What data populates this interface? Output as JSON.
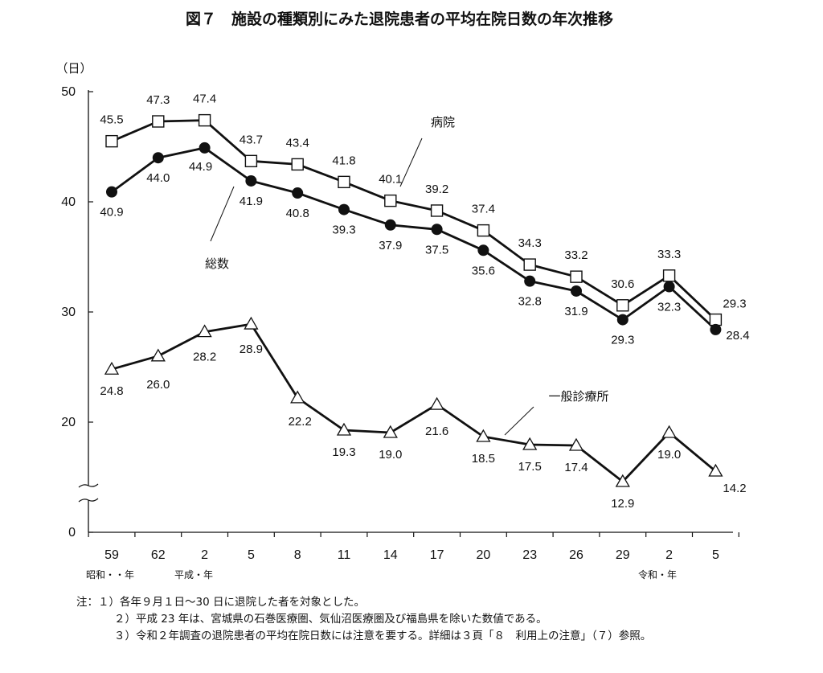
{
  "title": "図７　施設の種類別にみた退院患者の平均在院日数の年次推移",
  "chart_data": {
    "type": "line",
    "y_unit_label": "（日）",
    "ylim": [
      0,
      50
    ],
    "yticks": [
      0,
      20,
      30,
      40,
      50
    ],
    "y_axis_break": true,
    "grid": false,
    "categories": [
      "59",
      "62",
      "2",
      "5",
      "8",
      "11",
      "14",
      "17",
      "20",
      "23",
      "26",
      "29",
      "2",
      "5"
    ],
    "era_labels": [
      "昭和・・年",
      "平成・年",
      "令和・年"
    ],
    "series": [
      {
        "name": "病院",
        "marker": "open-square",
        "values": [
          45.5,
          47.3,
          47.4,
          43.7,
          43.4,
          41.8,
          40.1,
          39.2,
          37.4,
          34.3,
          33.2,
          30.6,
          33.3,
          29.3
        ]
      },
      {
        "name": "総数",
        "marker": "filled-circle",
        "values": [
          40.9,
          44.0,
          44.9,
          41.9,
          40.8,
          39.3,
          37.9,
          37.5,
          35.6,
          32.8,
          31.9,
          29.3,
          32.3,
          28.4
        ]
      },
      {
        "name": "一般診療所",
        "marker": "open-triangle",
        "values": [
          24.8,
          26.0,
          28.2,
          28.9,
          22.2,
          19.3,
          19.0,
          21.6,
          18.5,
          17.5,
          17.4,
          12.9,
          19.0,
          14.2
        ]
      }
    ]
  },
  "notes": [
    "注：１）各年９月１日～30 日に退院した者を対象とした。",
    "２）平成 23 年は、宮城県の石巻医療圏、気仙沼医療圏及び福島県を除いた数値である。",
    "３）令和２年調査の退院患者の平均在院日数には注意を要する。詳細は３頁「８　利用上の注意」（７）参照。"
  ]
}
